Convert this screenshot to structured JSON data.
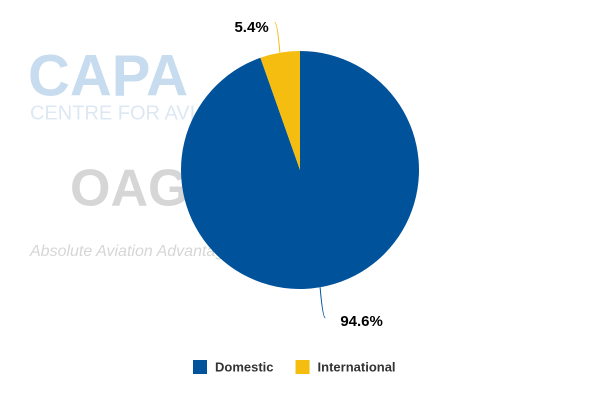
{
  "chart_data": {
    "type": "pie",
    "watermark": [
      "CAPA",
      "CENTRE FOR AVIATION",
      "OAG",
      "Absolute Aviation Advantage"
    ],
    "categories": [
      "Domestic",
      "International"
    ],
    "values": [
      94.6,
      5.4
    ],
    "value_labels": [
      "94.6%",
      "5.4%"
    ],
    "colors": [
      "#00529b",
      "#f5bd0f"
    ],
    "legend": "bottom"
  }
}
